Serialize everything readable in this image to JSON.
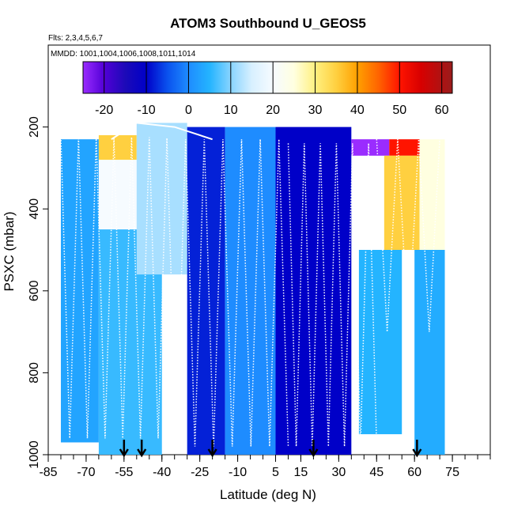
{
  "chart_data": {
    "type": "heatmap",
    "title": "ATOM3 Southbound U_GEOS5",
    "subtitle_flights": "Flts: 2,3,4,5,6,7",
    "subtitle_dates": "MMDD: 1001,1004,1006,1008,1011,1014",
    "xlabel": "Latitude (deg N)",
    "ylabel": "PSXC (mbar)",
    "xlim": [
      -85,
      90
    ],
    "ylim": [
      1000,
      0
    ],
    "x_ticks": [
      -85,
      -70,
      -55,
      -40,
      -25,
      -10,
      5,
      15,
      30,
      45,
      60,
      75
    ],
    "y_ticks": [
      200,
      400,
      600,
      800,
      1000
    ],
    "colorbar": {
      "range": [
        -25,
        62.5
      ],
      "ticks": [
        -20,
        -10,
        0,
        10,
        20,
        30,
        40,
        50,
        60
      ],
      "colors": [
        {
          "v": -25,
          "c": "#9a2cff"
        },
        {
          "v": -20,
          "c": "#5200d6"
        },
        {
          "v": -15,
          "c": "#1c0ab8"
        },
        {
          "v": -10,
          "c": "#0000c8"
        },
        {
          "v": -5,
          "c": "#0a52ee"
        },
        {
          "v": 0,
          "c": "#1e8cff"
        },
        {
          "v": 5,
          "c": "#24b4ff"
        },
        {
          "v": 10,
          "c": "#88d4ff"
        },
        {
          "v": 15,
          "c": "#d8f0ff"
        },
        {
          "v": 20,
          "c": "#f6fbff"
        },
        {
          "v": 25,
          "c": "#ffffe0"
        },
        {
          "v": 30,
          "c": "#fff080"
        },
        {
          "v": 35,
          "c": "#ffd040"
        },
        {
          "v": 40,
          "c": "#ffa000"
        },
        {
          "v": 45,
          "c": "#ff6400"
        },
        {
          "v": 50,
          "c": "#ff1400"
        },
        {
          "v": 55,
          "c": "#d80000"
        },
        {
          "v": 62.5,
          "c": "#9a1c1c"
        }
      ]
    },
    "vertical_profile_latitudes": [
      -55,
      -48,
      -20,
      20,
      61
    ],
    "u_wind_field": [
      {
        "lat": [
          -80,
          -65
        ],
        "p": [
          230,
          970
        ],
        "u": 3
      },
      {
        "lat": [
          -65,
          -50
        ],
        "p": [
          220,
          280
        ],
        "u": 35
      },
      {
        "lat": [
          -65,
          -50
        ],
        "p": [
          280,
          450
        ],
        "u": 20
      },
      {
        "lat": [
          -65,
          -40
        ],
        "p": [
          450,
          1000
        ],
        "u": 6
      },
      {
        "lat": [
          -50,
          -30
        ],
        "p": [
          190,
          560
        ],
        "u": 12
      },
      {
        "lat": [
          -30,
          -15
        ],
        "p": [
          200,
          1000
        ],
        "u": -8
      },
      {
        "lat": [
          -15,
          5
        ],
        "p": [
          200,
          1000
        ],
        "u": 0
      },
      {
        "lat": [
          5,
          35
        ],
        "p": [
          200,
          1000
        ],
        "u": -10
      },
      {
        "lat": [
          35,
          50
        ],
        "p": [
          230,
          270
        ],
        "u": -25
      },
      {
        "lat": [
          50,
          62
        ],
        "p": [
          230,
          270
        ],
        "u": 50
      },
      {
        "lat": [
          48,
          62
        ],
        "p": [
          270,
          500
        ],
        "u": 35
      },
      {
        "lat": [
          38,
          55
        ],
        "p": [
          500,
          950
        ],
        "u": 5
      },
      {
        "lat": [
          62,
          72
        ],
        "p": [
          230,
          500
        ],
        "u": 25
      },
      {
        "lat": [
          60,
          72
        ],
        "p": [
          500,
          1000
        ],
        "u": 4
      }
    ]
  }
}
